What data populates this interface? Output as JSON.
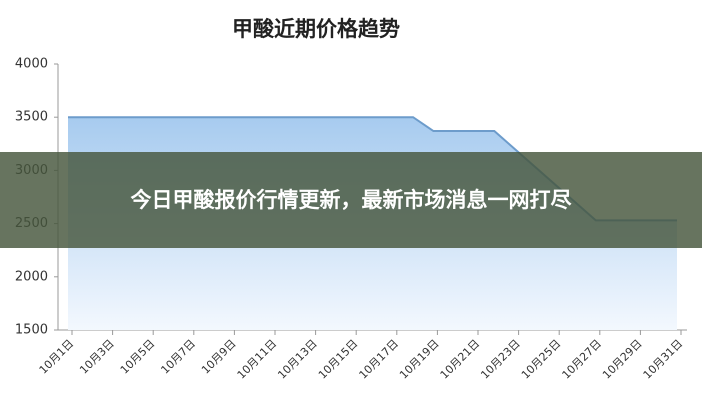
{
  "chart_data": {
    "type": "area",
    "title": "甲酸近期价格趋势",
    "categories": [
      "10月1日",
      null,
      "10月3日",
      null,
      "10月5日",
      null,
      "10月7日",
      null,
      "10月9日",
      null,
      "10月11日",
      null,
      "10月13日",
      null,
      "10月15日",
      null,
      "10月17日",
      null,
      "10月19日",
      null,
      "10月21日",
      null,
      "10月23日",
      null,
      "10月25日",
      null,
      "10月27日",
      null,
      "10月29日",
      null,
      "10月31日"
    ],
    "values": [
      3500,
      3500,
      3500,
      3500,
      3500,
      3500,
      3500,
      3500,
      3500,
      3500,
      3500,
      3500,
      3500,
      3500,
      3500,
      3500,
      3500,
      3500,
      3370,
      3370,
      3370,
      3370,
      3202,
      3034,
      2866,
      2698,
      2530,
      2530,
      2530,
      2530,
      2530
    ],
    "color": "#6d9ccb",
    "ylim": [
      1500,
      4000
    ],
    "yticks": [
      1500,
      2000,
      2500,
      3000,
      3500,
      4000
    ],
    "grid": false
  },
  "banner": {
    "text": "今日甲酸报价行情更新，最新市场消息一网打尽"
  }
}
